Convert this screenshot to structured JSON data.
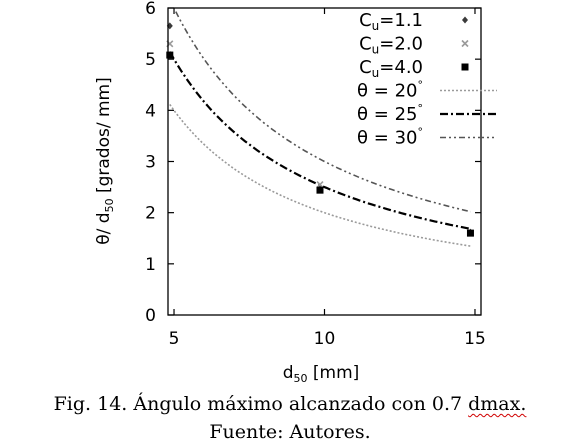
{
  "chart_data": {
    "type": "scatter",
    "title": "",
    "xlabel": "d",
    "xlabel_sub": "50",
    "xlabel_unit": " [mm]",
    "ylabel": "θ/ d",
    "ylabel_sub": "50",
    "ylabel_unit": " [grados/ mm]",
    "xlim": [
      4.8,
      15.2
    ],
    "ylim": [
      0,
      6
    ],
    "xticks": [
      "5",
      "10",
      "15"
    ],
    "yticks": [
      "0",
      "1",
      "2",
      "3",
      "4",
      "5",
      "6"
    ],
    "grid": false,
    "legend_position": "top-right",
    "point_series": [
      {
        "name_main": "C",
        "name_sub": "u",
        "name_rest": "=1.1",
        "marker": "diamond",
        "color": "#3a3a3a",
        "points": [
          [
            4.86,
            5.65
          ],
          [
            9.85,
            2.47
          ],
          [
            14.85,
            1.62
          ]
        ]
      },
      {
        "name_main": "C",
        "name_sub": "u",
        "name_rest": "=2.0",
        "marker": "cross",
        "color": "#9a9a9a",
        "points": [
          [
            4.86,
            5.3
          ],
          [
            9.85,
            2.55
          ],
          [
            14.85,
            1.6
          ]
        ]
      },
      {
        "name_main": "C",
        "name_sub": "u",
        "name_rest": "=4.0",
        "marker": "square",
        "color": "#000000",
        "points": [
          [
            4.86,
            5.08
          ],
          [
            9.85,
            2.44
          ],
          [
            14.85,
            1.6
          ]
        ]
      }
    ],
    "curve_series": [
      {
        "name_main": "θ = 20",
        "name_sup": "°",
        "angle_deg": 20,
        "style": "dotted",
        "color": "#9a9a9a"
      },
      {
        "name_main": "θ = 25",
        "name_sup": "°",
        "angle_deg": 25,
        "style": "dashdot",
        "color": "#000000"
      },
      {
        "name_main": "θ = 30",
        "name_sup": "°",
        "angle_deg": 30,
        "style": "dashdotdot",
        "color": "#555555"
      }
    ]
  },
  "caption": {
    "line1_prefix": "Fig. 14. Ángulo máximo alcanzado con 0.7 ",
    "line1_flagged": "dmax.",
    "line2": "Fuente: Autores."
  },
  "colors": {
    "spellcheck_underline": "#d00000"
  }
}
